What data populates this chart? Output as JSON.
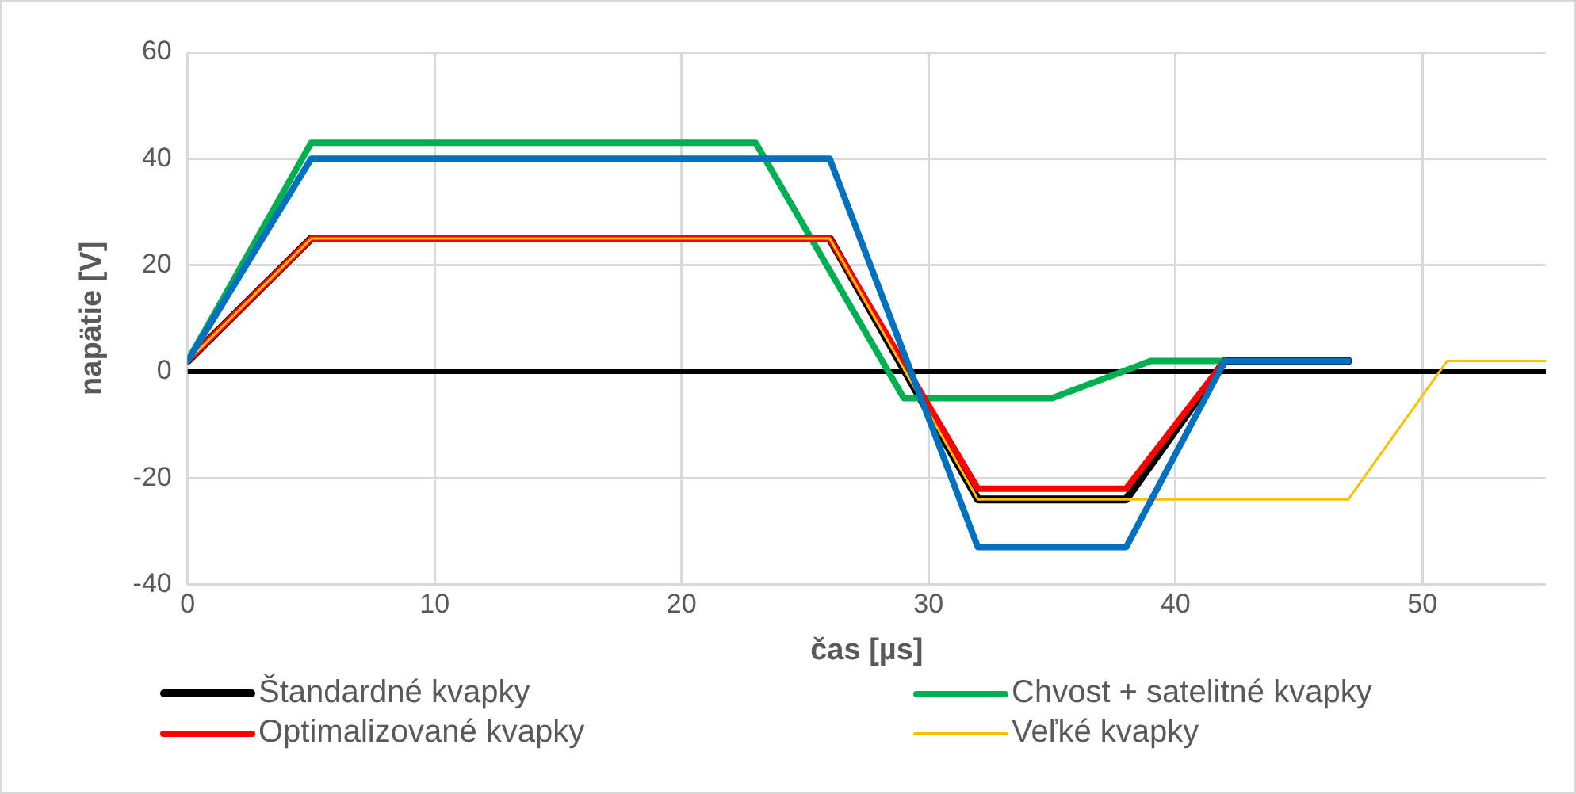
{
  "chart_data": {
    "type": "line",
    "xlabel": "čas [µs]",
    "ylabel": "napätie [V]",
    "xlim": [
      0,
      55
    ],
    "xticks": [
      0,
      10,
      20,
      30,
      40,
      50
    ],
    "ylim": [
      -40,
      60
    ],
    "yticks": [
      -40,
      -20,
      0,
      20,
      40,
      60
    ],
    "grid": true,
    "legend": "bottom",
    "marker": "none",
    "line_style": "solid",
    "ref_lines": [
      {
        "axis": "y",
        "value": 0,
        "color": "#000000"
      }
    ],
    "series": [
      {
        "name": "Štandardné kvapky",
        "color": "#000000",
        "x": [
          0,
          5,
          26,
          32,
          38,
          42,
          47
        ],
        "values": [
          2,
          25,
          25,
          -24,
          -24,
          2,
          2
        ]
      },
      {
        "name": "Chvost + satelitné kvapky",
        "color": "#00b050",
        "x": [
          0,
          5,
          23,
          29,
          35,
          39,
          42
        ],
        "values": [
          2,
          43,
          43,
          -5,
          -5,
          2,
          2
        ]
      },
      {
        "name": "Optimalizované kvapky",
        "color": "#ff0000",
        "x": [
          0,
          5,
          26,
          32,
          38,
          42
        ],
        "values": [
          2,
          25,
          25,
          -22,
          -22,
          2
        ]
      },
      {
        "name": "Veľké kvapky",
        "color": "#ffc000",
        "x": [
          0,
          5,
          26,
          32,
          47,
          51,
          55
        ],
        "values": [
          2,
          25,
          25,
          -24,
          -24,
          2,
          2
        ]
      },
      {
        "color": "#0070c0",
        "x": [
          0,
          5,
          26,
          32,
          38,
          42,
          47
        ],
        "values": [
          2,
          40,
          40,
          -33,
          -33,
          2,
          2
        ]
      }
    ]
  }
}
